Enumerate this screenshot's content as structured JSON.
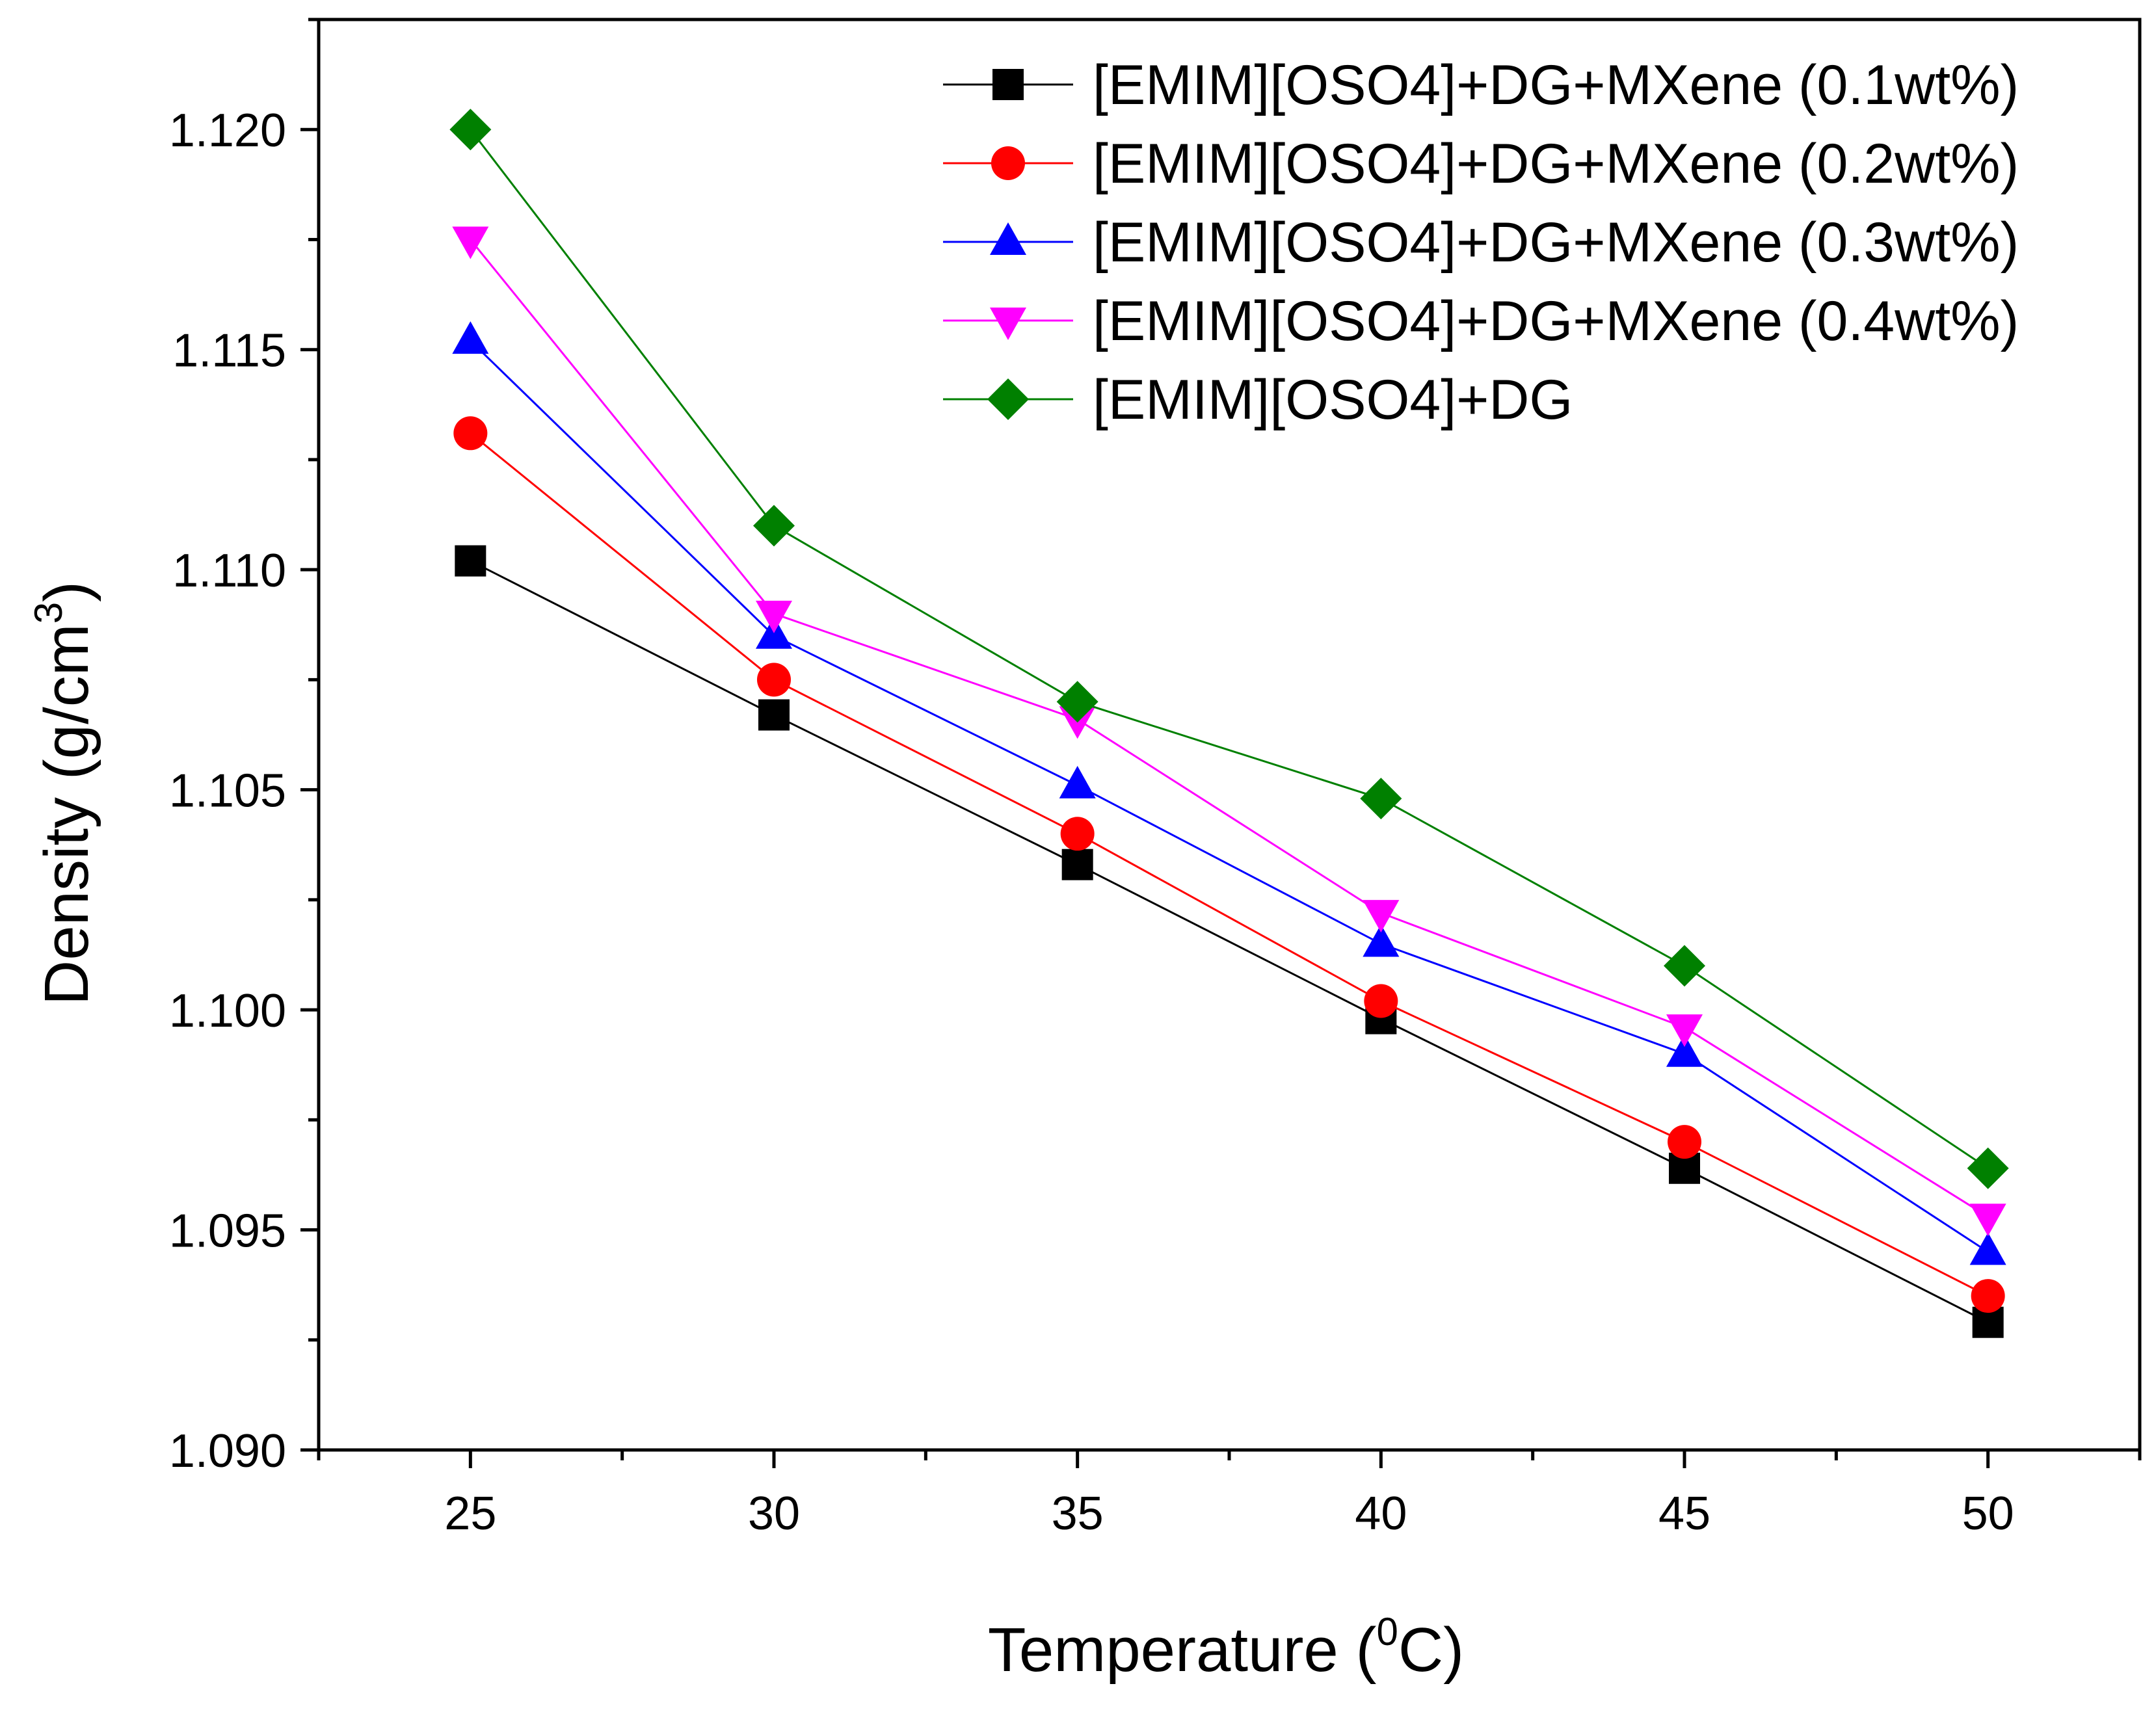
{
  "chart_data": {
    "type": "line",
    "title": "",
    "xlabel": "Temperature (",
    "xlabel_sup": "0",
    "xlabel_suffix": "C)",
    "ylabel": "Density (g/cm",
    "ylabel_sup": "3",
    "ylabel_suffix": ")",
    "x": [
      25,
      30,
      35,
      40,
      45,
      50
    ],
    "x_ticks": [
      "25",
      "30",
      "35",
      "40",
      "45",
      "50"
    ],
    "y_ticks": [
      "1.090",
      "1.095",
      "1.100",
      "1.105",
      "1.110",
      "1.115",
      "1.120"
    ],
    "xlim": [
      22.5,
      52.5
    ],
    "ylim": [
      1.09,
      1.1225
    ],
    "legend_position": "top-right",
    "grid": false,
    "series": [
      {
        "name": "[EMIM][OSO4]+DG+MXene (0.1wt%)",
        "color": "#000000",
        "marker": "square",
        "values": [
          1.1102,
          1.1067,
          1.1033,
          1.0998,
          1.0964,
          1.0929
        ]
      },
      {
        "name": "[EMIM][OSO4]+DG+MXene (0.2wt%)",
        "color": "#ff0000",
        "marker": "circle",
        "values": [
          1.1131,
          1.1075,
          1.104,
          1.1002,
          1.097,
          1.0935
        ]
      },
      {
        "name": "[EMIM][OSO4]+DG+MXene (0.3wt%)",
        "color": "#0000ff",
        "marker": "triangle-up",
        "values": [
          1.1152,
          1.1085,
          1.1051,
          1.1015,
          1.099,
          1.0945
        ]
      },
      {
        "name": "[EMIM][OSO4]+DG+MXene (0.4wt%)",
        "color": "#ff00ff",
        "marker": "triangle-down",
        "values": [
          1.1175,
          1.109,
          1.1066,
          1.1022,
          1.0996,
          1.0953
        ]
      },
      {
        "name": "[EMIM][OSO4]+DG",
        "color": "#008000",
        "marker": "diamond",
        "values": [
          1.12,
          1.111,
          1.107,
          1.1048,
          1.101,
          1.0964
        ]
      }
    ]
  }
}
